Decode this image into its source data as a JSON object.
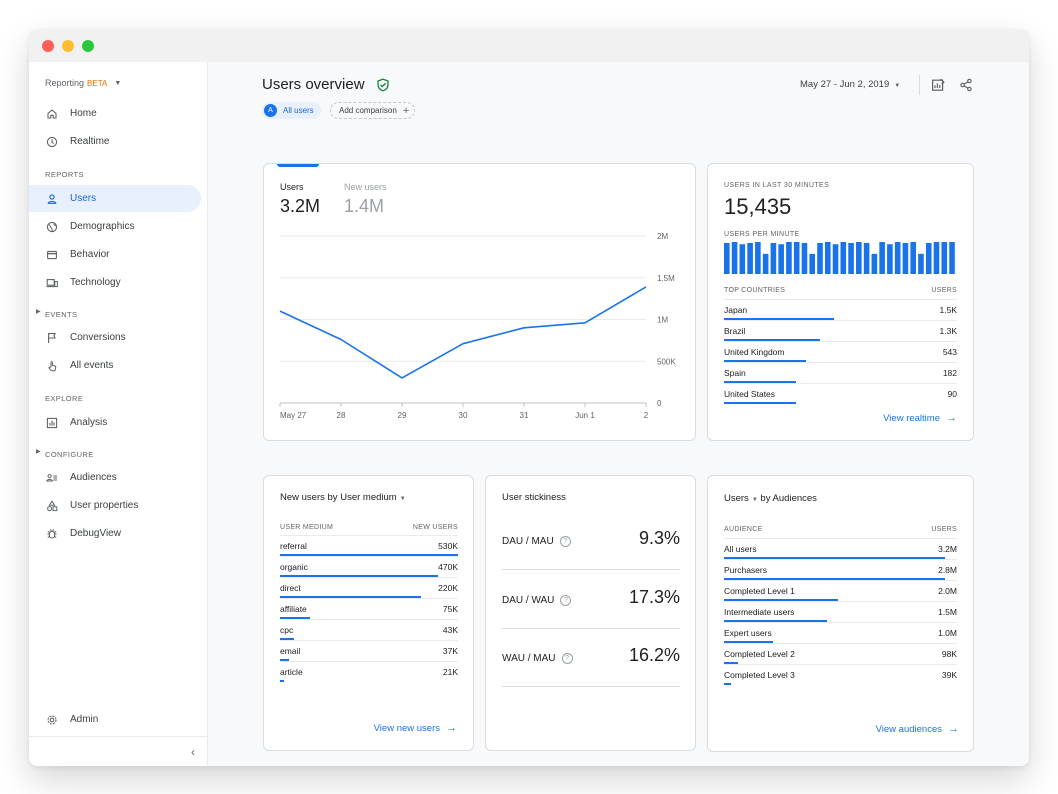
{
  "colors": {
    "accent": "#1a73e8",
    "beta": "#e8710a",
    "verified": "#188038"
  },
  "window": {
    "controls": [
      "close",
      "minimize",
      "maximize"
    ]
  },
  "sidebar": {
    "product": "Reporting",
    "beta": "BETA",
    "items": [
      {
        "label": "Home",
        "icon": "home-icon"
      },
      {
        "label": "Realtime",
        "icon": "clock-icon"
      },
      {
        "label": "Users",
        "icon": "person-icon",
        "active": true
      },
      {
        "label": "Demographics",
        "icon": "globe-icon"
      },
      {
        "label": "Behavior",
        "icon": "behavior-icon"
      },
      {
        "label": "Technology",
        "icon": "devices-icon",
        "expandable": true
      },
      {
        "label": "Conversions",
        "icon": "flag-icon"
      },
      {
        "label": "All events",
        "icon": "touch-icon"
      },
      {
        "label": "Analysis",
        "icon": "analysis-icon",
        "expandable": true
      },
      {
        "label": "Audiences",
        "icon": "audiences-icon"
      },
      {
        "label": "User properties",
        "icon": "shapes-icon"
      },
      {
        "label": "DebugView",
        "icon": "bug-icon"
      },
      {
        "label": "Admin",
        "icon": "gear-icon"
      }
    ],
    "sections": [
      "REPORTS",
      "EVENTS",
      "EXPLORE",
      "CONFIGURE"
    ],
    "collapse_glyph": "‹"
  },
  "header": {
    "title": "Users overview",
    "chip_avatar": "A",
    "chip_label": "All users",
    "compare_label": "Add comparison",
    "date_range": "May 27 - Jun 2, 2019"
  },
  "users_card": {
    "tabs": [
      {
        "label": "Users",
        "value": "3.2M"
      },
      {
        "label": "New users",
        "value": "1.4M"
      }
    ]
  },
  "chart_data": {
    "type": "line",
    "title": "",
    "xlabel": "",
    "ylabel": "",
    "categories": [
      "May 27",
      "28",
      "29",
      "30",
      "31",
      "Jun 1",
      "2"
    ],
    "series": [
      {
        "name": "Users",
        "values": [
          1100000,
          760000,
          300000,
          710000,
          900000,
          960000,
          1390000
        ]
      }
    ],
    "ylim": [
      0,
      2000000
    ],
    "yticks": [
      0,
      500000,
      1000000,
      1500000,
      2000000
    ],
    "ytick_labels": [
      "0",
      "500K",
      "1M",
      "1.5M",
      "2M"
    ],
    "yaxis_side": "right",
    "grid": true
  },
  "realtime_card": {
    "users_label": "USERS IN LAST 30 MINUTES",
    "users_value": "15,435",
    "per_minute_label": "USERS PER MINUTE",
    "per_minute": [
      0.97,
      1.0,
      0.93,
      0.97,
      1.0,
      0.63,
      0.97,
      0.93,
      1.0,
      1.0,
      0.97,
      0.63,
      0.97,
      1.0,
      0.93,
      1.0,
      0.97,
      1.0,
      0.97,
      0.63,
      1.0,
      0.93,
      1.0,
      0.97,
      1.0,
      0.63,
      0.97,
      1.0,
      1.0,
      1.0
    ],
    "countries_header": "TOP COUNTRIES",
    "users_header": "USERS",
    "countries": [
      {
        "name": "Japan",
        "value": "1.5K",
        "share": 0.47
      },
      {
        "name": "Brazil",
        "value": "1.3K",
        "share": 0.41
      },
      {
        "name": "United Kingdom",
        "value": "543",
        "share": 0.35
      },
      {
        "name": "Spain",
        "value": "182",
        "share": 0.31
      },
      {
        "name": "United States",
        "value": "90",
        "share": 0.31
      }
    ],
    "link": "View realtime"
  },
  "medium_card": {
    "title_metric": "New users",
    "title_by": "by",
    "title_dim": "User medium",
    "col1": "USER MEDIUM",
    "col2": "NEW USERS",
    "rows": [
      {
        "label": "referral",
        "value": "530K",
        "share": 1.0
      },
      {
        "label": "organic",
        "value": "470K",
        "share": 0.89
      },
      {
        "label": "direct",
        "value": "220K",
        "share": 0.79
      },
      {
        "label": "affiliate",
        "value": "75K",
        "share": 0.17
      },
      {
        "label": "cpc",
        "value": "43K",
        "share": 0.08
      },
      {
        "label": "email",
        "value": "37K",
        "share": 0.05
      },
      {
        "label": "article",
        "value": "21K",
        "share": 0.02
      }
    ],
    "link": "View new users"
  },
  "stickiness_card": {
    "title": "User stickiness",
    "metrics": [
      {
        "label": "DAU / MAU",
        "value": "9.3%"
      },
      {
        "label": "DAU / WAU",
        "value": "17.3%"
      },
      {
        "label": "WAU / MAU",
        "value": "16.2%"
      }
    ],
    "help_glyph": "?"
  },
  "audience_card": {
    "title_metric": "Users",
    "title_by": "by Audiences",
    "col1": "AUDIENCE",
    "col2": "USERS",
    "rows": [
      {
        "label": "All users",
        "value": "3.2M",
        "share": 0.95
      },
      {
        "label": "Purchasers",
        "value": "2.8M",
        "share": 0.95
      },
      {
        "label": "Completed Level 1",
        "value": "2.0M",
        "share": 0.49
      },
      {
        "label": "Intermediate users",
        "value": "1.5M",
        "share": 0.44
      },
      {
        "label": "Expert users",
        "value": "1.0M",
        "share": 0.21
      },
      {
        "label": "Completed Level 2",
        "value": "98K",
        "share": 0.06
      },
      {
        "label": "Completed Level 3",
        "value": "39K",
        "share": 0.03
      }
    ],
    "link": "View audiences"
  }
}
